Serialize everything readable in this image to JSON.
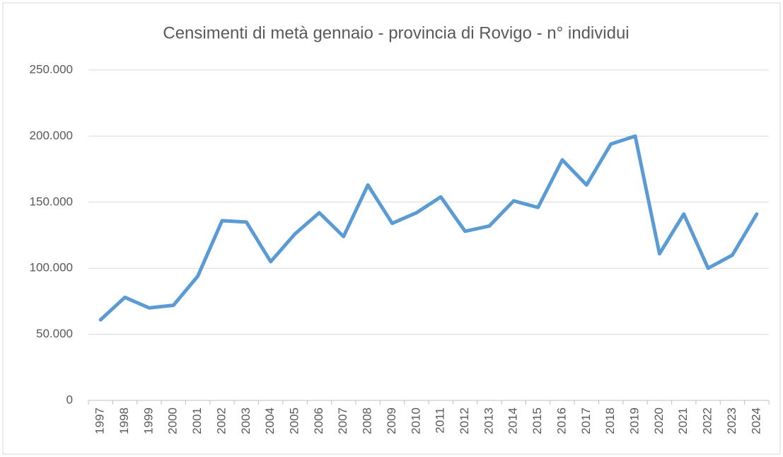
{
  "chart_data": {
    "type": "line",
    "title": "Censimenti di metà gennaio - provincia di Rovigo - n° individui",
    "categories": [
      "1997",
      "1998",
      "1999",
      "2000",
      "2001",
      "2002",
      "2003",
      "2004",
      "2005",
      "2006",
      "2007",
      "2008",
      "2009",
      "2010",
      "2011",
      "2012",
      "2013",
      "2014",
      "2015",
      "2016",
      "2017",
      "2018",
      "2019",
      "2020",
      "2021",
      "2022",
      "2023",
      "2024"
    ],
    "series": [
      {
        "name": "individui",
        "color": "#5b9bd5",
        "values": [
          61000,
          78000,
          70000,
          72000,
          94000,
          136000,
          135000,
          105000,
          126000,
          142000,
          124000,
          163000,
          134000,
          142000,
          154000,
          128000,
          132000,
          151000,
          146000,
          182000,
          163000,
          194000,
          200000,
          111000,
          141000,
          100000,
          110000,
          141000
        ]
      }
    ],
    "ylim": [
      0,
      250000
    ],
    "yticks": [
      0,
      {
        "value": 50000,
        "label": "50.000"
      },
      {
        "value": 100000,
        "label": "100.000"
      },
      {
        "value": 150000,
        "label": "150.000"
      },
      {
        "value": 200000,
        "label": "200.000"
      },
      {
        "value": 250000,
        "label": "250.000"
      }
    ],
    "grid": true
  }
}
